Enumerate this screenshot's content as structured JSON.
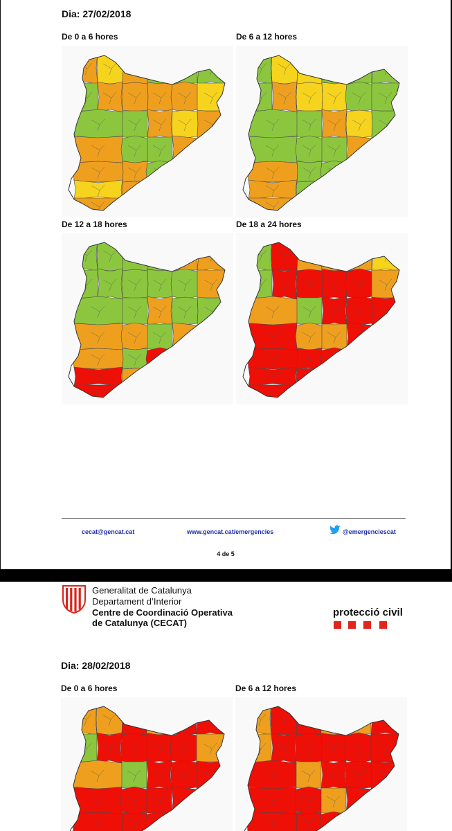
{
  "page1": {
    "day": "Dia: 27/02/2018",
    "panels": [
      {
        "title": "De 0 a 6 hores",
        "zones": [
          {
            "name": "vall-d-aran",
            "color": "#ee9f1e"
          },
          {
            "name": "pallars-sobira",
            "color": "#f6d31c"
          },
          {
            "name": "alt-urgell",
            "color": "#ee9f1e"
          },
          {
            "name": "cerdanya",
            "color": "#8cc63e"
          },
          {
            "name": "ripolles",
            "color": "#8cc63e"
          },
          {
            "name": "garrotxa",
            "color": "#8cc63e"
          },
          {
            "name": "alt-emporda",
            "color": "#8cc63e"
          },
          {
            "name": "ribagorca",
            "color": "#ee9f1e"
          },
          {
            "name": "pallars-jussa",
            "color": "#ee9f1e"
          },
          {
            "name": "solsones",
            "color": "#ee9f1e"
          },
          {
            "name": "bergueda",
            "color": "#ee9f1e"
          },
          {
            "name": "osona",
            "color": "#f6d31c"
          },
          {
            "name": "girones",
            "color": "#8cc63e"
          },
          {
            "name": "baix-emporda",
            "color": "#8cc63e"
          },
          {
            "name": "noguera",
            "color": "#ee9f1e"
          },
          {
            "name": "segarra",
            "color": "#f6d31c"
          },
          {
            "name": "bages",
            "color": "#ee9f1e"
          },
          {
            "name": "valles",
            "color": "#ee9f1e"
          },
          {
            "name": "selva",
            "color": "#8cc63e"
          },
          {
            "name": "maresme",
            "color": "#8cc63e"
          },
          {
            "name": "segria",
            "color": "#ee9f1e"
          },
          {
            "name": "urgell",
            "color": "#ee9f1e"
          },
          {
            "name": "anoia",
            "color": "#ee9f1e"
          },
          {
            "name": "barcelones",
            "color": "#8cc63e"
          },
          {
            "name": "garrigues",
            "color": "#f6d31c"
          },
          {
            "name": "conca",
            "color": "#f6d31c"
          },
          {
            "name": "penedes",
            "color": "#ee9f1e"
          },
          {
            "name": "garraf",
            "color": "#8cc63e"
          },
          {
            "name": "ribera-priorat",
            "color": "#ee9f1e"
          },
          {
            "name": "baix-camp",
            "color": "#ee9f1e"
          },
          {
            "name": "tarragones",
            "color": "#ee9f1e"
          },
          {
            "name": "terra-alta",
            "color": "#f6d31c"
          },
          {
            "name": "baix-ebre",
            "color": "#ee9f1e"
          },
          {
            "name": "montsia",
            "color": "#ee9f1e"
          }
        ]
      },
      {
        "title": "De 6 a 12 hores",
        "zones": [
          {
            "name": "vall-d-aran",
            "color": "#8cc63e"
          },
          {
            "name": "pallars-sobira",
            "color": "#f6d31c"
          },
          {
            "name": "alt-urgell",
            "color": "#f6d31c"
          },
          {
            "name": "cerdanya",
            "color": "#8cc63e"
          },
          {
            "name": "ripolles",
            "color": "#8cc63e"
          },
          {
            "name": "garrotxa",
            "color": "#8cc63e"
          },
          {
            "name": "alt-emporda",
            "color": "#8cc63e"
          },
          {
            "name": "ribagorca",
            "color": "#ee9f1e"
          },
          {
            "name": "pallars-jussa",
            "color": "#f6d31c"
          },
          {
            "name": "solsones",
            "color": "#f6d31c"
          },
          {
            "name": "bergueda",
            "color": "#8cc63e"
          },
          {
            "name": "osona",
            "color": "#8cc63e"
          },
          {
            "name": "girones",
            "color": "#8cc63e"
          },
          {
            "name": "baix-emporda",
            "color": "#8cc63e"
          },
          {
            "name": "noguera",
            "color": "#ee9f1e"
          },
          {
            "name": "segarra",
            "color": "#f6d31c"
          },
          {
            "name": "bages",
            "color": "#8cc63e"
          },
          {
            "name": "valles",
            "color": "#8cc63e"
          },
          {
            "name": "selva",
            "color": "#8cc63e"
          },
          {
            "name": "maresme",
            "color": "#8cc63e"
          },
          {
            "name": "segria",
            "color": "#ee9f1e"
          },
          {
            "name": "urgell",
            "color": "#ee9f1e"
          },
          {
            "name": "anoia",
            "color": "#8cc63e"
          },
          {
            "name": "barcelones",
            "color": "#8cc63e"
          },
          {
            "name": "garrigues",
            "color": "#f6d31c"
          },
          {
            "name": "conca",
            "color": "#ee9f1e"
          },
          {
            "name": "penedes",
            "color": "#8cc63e"
          },
          {
            "name": "garraf",
            "color": "#8cc63e"
          },
          {
            "name": "ribera-priorat",
            "color": "#ee9f1e"
          },
          {
            "name": "baix-camp",
            "color": "#ee9f1e"
          },
          {
            "name": "tarragones",
            "color": "#8cc63e"
          },
          {
            "name": "terra-alta",
            "color": "#f6d31c"
          },
          {
            "name": "baix-ebre",
            "color": "#ee9f1e"
          },
          {
            "name": "montsia",
            "color": "#ee9f1e"
          }
        ]
      },
      {
        "title": "De 12 a 18 hores",
        "zones": [
          {
            "name": "vall-d-aran",
            "color": "#8cc63e"
          },
          {
            "name": "pallars-sobira",
            "color": "#8cc63e"
          },
          {
            "name": "alt-urgell",
            "color": "#8cc63e"
          },
          {
            "name": "cerdanya",
            "color": "#8cc63e"
          },
          {
            "name": "ripolles",
            "color": "#ee9f1e"
          },
          {
            "name": "garrotxa",
            "color": "#ee9f1e"
          },
          {
            "name": "alt-emporda",
            "color": "#8cc63e"
          },
          {
            "name": "ribagorca",
            "color": "#8cc63e"
          },
          {
            "name": "pallars-jussa",
            "color": "#8cc63e"
          },
          {
            "name": "solsones",
            "color": "#8cc63e"
          },
          {
            "name": "bergueda",
            "color": "#8cc63e"
          },
          {
            "name": "osona",
            "color": "#ee9f1e"
          },
          {
            "name": "girones",
            "color": "#8cc63e"
          },
          {
            "name": "baix-emporda",
            "color": "#8cc63e"
          },
          {
            "name": "noguera",
            "color": "#ee9f1e"
          },
          {
            "name": "segarra",
            "color": "#8cc63e"
          },
          {
            "name": "bages",
            "color": "#8cc63e"
          },
          {
            "name": "valles",
            "color": "#ee9f1e"
          },
          {
            "name": "selva",
            "color": "#ee9f1e"
          },
          {
            "name": "maresme",
            "color": "#8cc63e"
          },
          {
            "name": "segria",
            "color": "#ee9f1e"
          },
          {
            "name": "urgell",
            "color": "#ee9f1e"
          },
          {
            "name": "anoia",
            "color": "#8cc63e"
          },
          {
            "name": "barcelones",
            "color": "#ee0f07"
          },
          {
            "name": "garrigues",
            "color": "#ee0f07"
          },
          {
            "name": "conca",
            "color": "#ee0f07"
          },
          {
            "name": "penedes",
            "color": "#ee9f1e"
          },
          {
            "name": "garraf",
            "color": "#ee9f1e"
          },
          {
            "name": "ribera-priorat",
            "color": "#ee0f07"
          },
          {
            "name": "baix-camp",
            "color": "#ee0f07"
          },
          {
            "name": "tarragones",
            "color": "#ee9f1e"
          },
          {
            "name": "terra-alta",
            "color": "#ee0f07"
          },
          {
            "name": "baix-ebre",
            "color": "#ee0f07"
          },
          {
            "name": "montsia",
            "color": "#ee0f07"
          }
        ]
      },
      {
        "title": "De 18 a 24 hores",
        "zones": [
          {
            "name": "vall-d-aran",
            "color": "#8cc63e"
          },
          {
            "name": "pallars-sobira",
            "color": "#ee0f07"
          },
          {
            "name": "alt-urgell",
            "color": "#ee9f1e"
          },
          {
            "name": "cerdanya",
            "color": "#ee9f1e"
          },
          {
            "name": "ripolles",
            "color": "#ee9f1e"
          },
          {
            "name": "garrotxa",
            "color": "#f6d31c"
          },
          {
            "name": "alt-emporda",
            "color": "#8cc63e"
          },
          {
            "name": "ribagorca",
            "color": "#ee0f07"
          },
          {
            "name": "pallars-jussa",
            "color": "#ee0f07"
          },
          {
            "name": "solsones",
            "color": "#ee0f07"
          },
          {
            "name": "bergueda",
            "color": "#ee0f07"
          },
          {
            "name": "osona",
            "color": "#ee9f1e"
          },
          {
            "name": "girones",
            "color": "#ee9f1e"
          },
          {
            "name": "baix-emporda",
            "color": "#8cc63e"
          },
          {
            "name": "noguera",
            "color": "#ee0f07"
          },
          {
            "name": "segarra",
            "color": "#ee0f07"
          },
          {
            "name": "bages",
            "color": "#ee0f07"
          },
          {
            "name": "valles",
            "color": "#ee0f07"
          },
          {
            "name": "selva",
            "color": "#ee9f1e"
          },
          {
            "name": "maresme",
            "color": "#ee9f1e"
          },
          {
            "name": "segria",
            "color": "#ee0f07"
          },
          {
            "name": "urgell",
            "color": "#ee0f07"
          },
          {
            "name": "anoia",
            "color": "#ee0f07"
          },
          {
            "name": "barcelones",
            "color": "#ee0f07"
          },
          {
            "name": "garrigues",
            "color": "#ee0f07"
          },
          {
            "name": "conca",
            "color": "#ee0f07"
          },
          {
            "name": "penedes",
            "color": "#ee0f07"
          },
          {
            "name": "garraf",
            "color": "#ee0f07"
          },
          {
            "name": "ribera-priorat",
            "color": "#ee0f07"
          },
          {
            "name": "baix-camp",
            "color": "#ee0f07"
          },
          {
            "name": "tarragones",
            "color": "#ee0f07"
          },
          {
            "name": "terra-alta",
            "color": "#ee0f07"
          },
          {
            "name": "baix-ebre",
            "color": "#ee0f07"
          },
          {
            "name": "montsia",
            "color": "#ee0f07"
          }
        ]
      }
    ],
    "footer": {
      "email": "cecat@gencat.cat",
      "web": "www.gencat.cat/emergencies",
      "twitter": "@emergenciescat",
      "twitter_icon": "twitter-bird-icon",
      "twitter_color": "#1da1f2",
      "page_number": "4 de 5"
    }
  },
  "page2": {
    "header": {
      "org_line1": "Generalitat de Catalunya",
      "org_line2": "Departament d’Interior",
      "cecat_line1": "Centre de Coordinació Operativa",
      "cecat_line2": "de Catalunya (CECAT)",
      "logo_icon": "generalitat-emblem-icon",
      "protection_label": "protecció civil",
      "brand_red": "#e1261c"
    },
    "day": "Dia: 28/02/2018",
    "panels": [
      {
        "title": "De 0 a 6 hores",
        "zones": [
          {
            "name": "vall-d-aran",
            "color": "#ee9f1e"
          },
          {
            "name": "pallars-sobira",
            "color": "#ee9f1e"
          },
          {
            "name": "alt-urgell",
            "color": "#ee0f07"
          },
          {
            "name": "cerdanya",
            "color": "#ee9f1e"
          },
          {
            "name": "ripolles",
            "color": "#ee0f07"
          },
          {
            "name": "garrotxa",
            "color": "#ee0f07"
          },
          {
            "name": "alt-emporda",
            "color": "#8cc63e"
          },
          {
            "name": "ribagorca",
            "color": "#ee0f07"
          },
          {
            "name": "pallars-jussa",
            "color": "#ee0f07"
          },
          {
            "name": "solsones",
            "color": "#ee0f07"
          },
          {
            "name": "bergueda",
            "color": "#ee0f07"
          },
          {
            "name": "osona",
            "color": "#ee9f1e"
          },
          {
            "name": "girones",
            "color": "#ee9f1e"
          },
          {
            "name": "baix-emporda",
            "color": "#8cc63e"
          },
          {
            "name": "noguera",
            "color": "#ee0f07"
          },
          {
            "name": "segarra",
            "color": "#ee0f07"
          },
          {
            "name": "bages",
            "color": "#ee0f07"
          },
          {
            "name": "valles",
            "color": "#ee0f07"
          },
          {
            "name": "selva",
            "color": "#ee0f07"
          },
          {
            "name": "maresme",
            "color": "#ee0f07"
          },
          {
            "name": "segria",
            "color": "#ee0f07"
          },
          {
            "name": "urgell",
            "color": "#ee0f07"
          },
          {
            "name": "anoia",
            "color": "#ee0f07"
          },
          {
            "name": "barcelones",
            "color": "#ee0f07"
          },
          {
            "name": "garrigues",
            "color": "#ee0f07"
          },
          {
            "name": "conca",
            "color": "#ee0f07"
          },
          {
            "name": "penedes",
            "color": "#ee0f07"
          },
          {
            "name": "garraf",
            "color": "#ee0f07"
          },
          {
            "name": "ribera-priorat",
            "color": "#ee0f07"
          },
          {
            "name": "baix-camp",
            "color": "#ee0f07"
          },
          {
            "name": "tarragones",
            "color": "#ee0f07"
          },
          {
            "name": "terra-alta",
            "color": "#ee0f07"
          },
          {
            "name": "baix-ebre",
            "color": "#ee0f07"
          },
          {
            "name": "montsia",
            "color": "#ee0f07"
          }
        ]
      },
      {
        "title": "De 6 a 12 hores",
        "zones": [
          {
            "name": "vall-d-aran",
            "color": "#ee9f1e"
          },
          {
            "name": "pallars-sobira",
            "color": "#ee0f07"
          },
          {
            "name": "alt-urgell",
            "color": "#ee0f07"
          },
          {
            "name": "cerdanya",
            "color": "#ee9f1e"
          },
          {
            "name": "ripolles",
            "color": "#ee9f1e"
          },
          {
            "name": "garrotxa",
            "color": "#ee0f07"
          },
          {
            "name": "alt-emporda",
            "color": "#ee9f1e"
          },
          {
            "name": "ribagorca",
            "color": "#ee0f07"
          },
          {
            "name": "pallars-jussa",
            "color": "#ee0f07"
          },
          {
            "name": "solsones",
            "color": "#ee0f07"
          },
          {
            "name": "bergueda",
            "color": "#ee0f07"
          },
          {
            "name": "osona",
            "color": "#ee0f07"
          },
          {
            "name": "girones",
            "color": "#ee0f07"
          },
          {
            "name": "baix-emporda",
            "color": "#ee9f1e"
          },
          {
            "name": "noguera",
            "color": "#ee0f07"
          },
          {
            "name": "segarra",
            "color": "#ee0f07"
          },
          {
            "name": "bages",
            "color": "#ee0f07"
          },
          {
            "name": "valles",
            "color": "#ee0f07"
          },
          {
            "name": "selva",
            "color": "#ee0f07"
          },
          {
            "name": "maresme",
            "color": "#ee9f1e"
          },
          {
            "name": "segria",
            "color": "#ee0f07"
          },
          {
            "name": "urgell",
            "color": "#ee0f07"
          },
          {
            "name": "anoia",
            "color": "#ee0f07"
          },
          {
            "name": "barcelones",
            "color": "#ee0f07"
          },
          {
            "name": "garrigues",
            "color": "#ee0f07"
          },
          {
            "name": "conca",
            "color": "#ee0f07"
          },
          {
            "name": "penedes",
            "color": "#ee0f07"
          },
          {
            "name": "garraf",
            "color": "#ee0f07"
          },
          {
            "name": "ribera-priorat",
            "color": "#ee9f1e"
          },
          {
            "name": "baix-camp",
            "color": "#ee0f07"
          },
          {
            "name": "tarragones",
            "color": "#ee0f07"
          },
          {
            "name": "terra-alta",
            "color": "#f6d31c"
          },
          {
            "name": "baix-ebre",
            "color": "#ee9f1e"
          },
          {
            "name": "montsia",
            "color": "#ee9f1e"
          }
        ]
      }
    ]
  }
}
